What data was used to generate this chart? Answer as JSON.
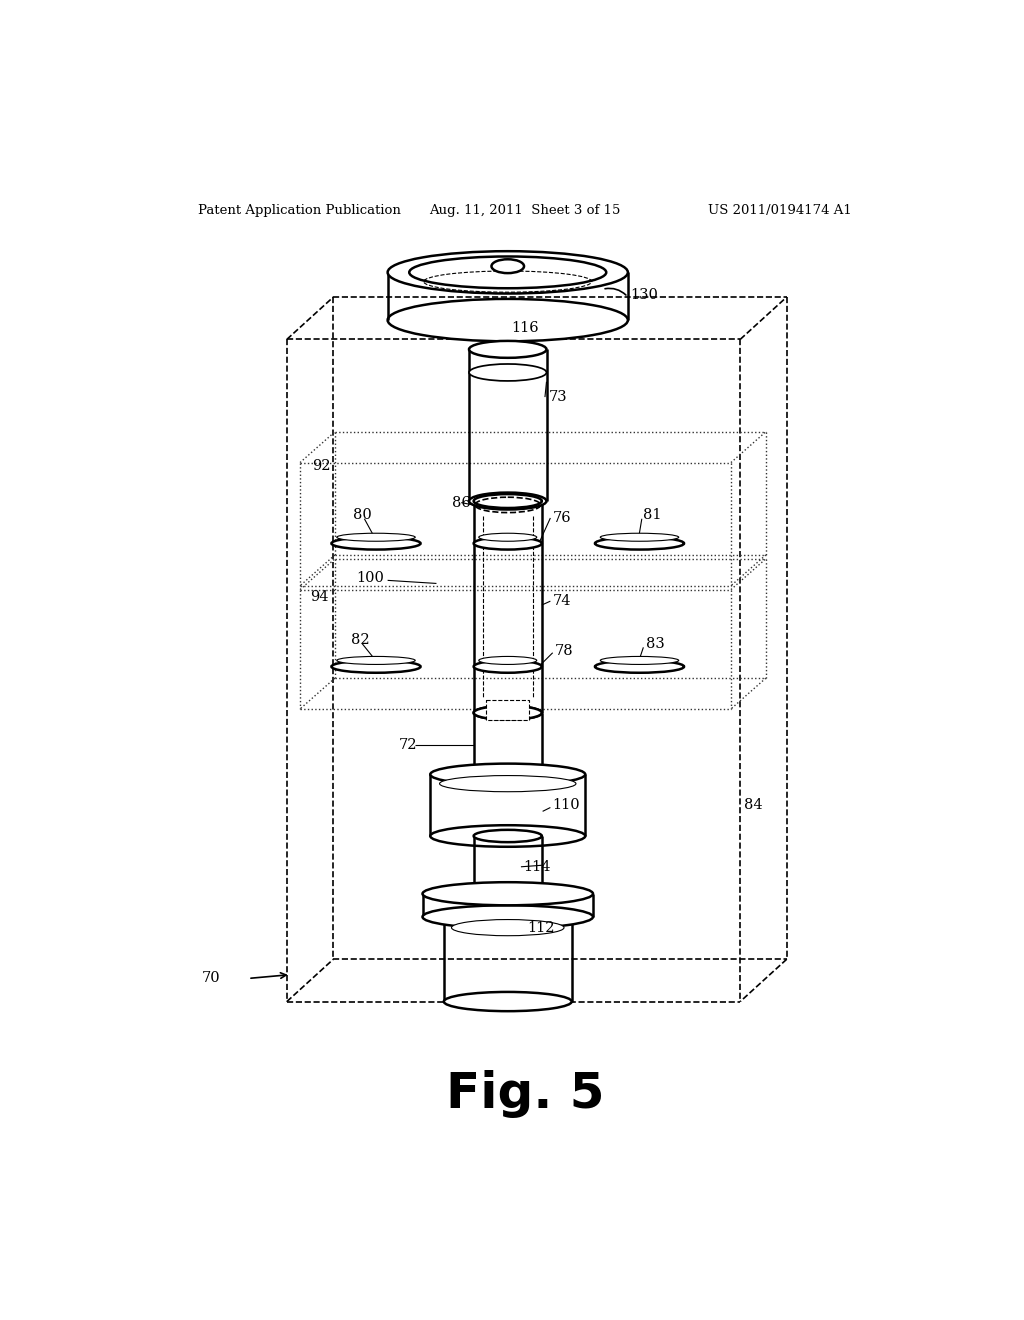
{
  "bg_color": "#ffffff",
  "line_color": "#000000",
  "header_left": "Patent Application Publication",
  "header_mid": "Aug. 11, 2011  Sheet 3 of 15",
  "header_right": "US 2011/0194174 A1",
  "fig_label": "Fig. 5"
}
